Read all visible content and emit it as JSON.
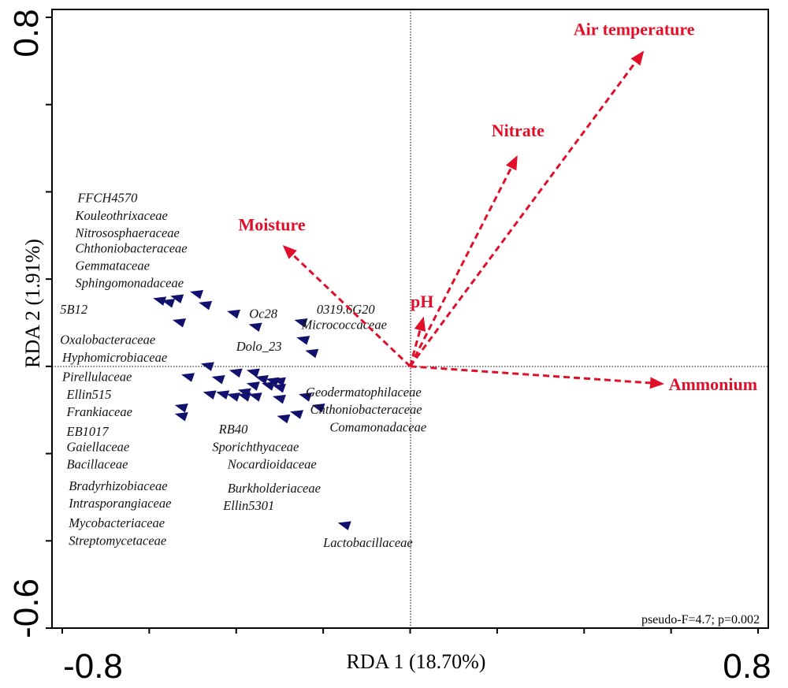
{
  "chart_data": {
    "type": "scatter",
    "subtype": "rda-biplot",
    "xlabel": "RDA 1 (18.70%)",
    "ylabel": "RDA 2 (1.91%)",
    "xlim": [
      -0.8,
      0.8
    ],
    "ylim": [
      -0.6,
      0.8
    ],
    "x_tick_labels": [
      "-0.8",
      "0.8"
    ],
    "y_tick_labels": [
      "0.8",
      "-0.6"
    ],
    "annotation": "pseudo-F=4.7; p=0.002",
    "grid": false,
    "reference_lines": "dotted lines at x=0 and y=0",
    "colors": {
      "environment": "#e0102a",
      "species": "#12126e",
      "axis": "#000000"
    },
    "environmental_variables": [
      {
        "name": "Air temperature",
        "x": 0.535,
        "y": 0.72
      },
      {
        "name": "Nitrate",
        "x": 0.245,
        "y": 0.48
      },
      {
        "name": "Moisture",
        "x": -0.29,
        "y": 0.275
      },
      {
        "name": "pH",
        "x": 0.03,
        "y": 0.11
      },
      {
        "name": "Ammonium",
        "x": 0.58,
        "y": -0.04
      }
    ],
    "species_points": [
      {
        "x": -0.575,
        "y": 0.15
      },
      {
        "x": -0.555,
        "y": 0.145
      },
      {
        "x": -0.535,
        "y": 0.155
      },
      {
        "x": -0.49,
        "y": 0.165
      },
      {
        "x": -0.47,
        "y": 0.14
      },
      {
        "x": -0.53,
        "y": 0.1
      },
      {
        "x": -0.405,
        "y": 0.12
      },
      {
        "x": -0.355,
        "y": 0.09
      },
      {
        "x": -0.25,
        "y": 0.1
      },
      {
        "x": -0.245,
        "y": 0.06
      },
      {
        "x": -0.225,
        "y": 0.03
      },
      {
        "x": -0.465,
        "y": 0.0
      },
      {
        "x": -0.36,
        "y": -0.015
      },
      {
        "x": -0.4,
        "y": -0.015
      },
      {
        "x": -0.44,
        "y": -0.03
      },
      {
        "x": -0.51,
        "y": -0.025
      },
      {
        "x": -0.46,
        "y": -0.065
      },
      {
        "x": -0.43,
        "y": -0.065
      },
      {
        "x": -0.405,
        "y": -0.07
      },
      {
        "x": -0.38,
        "y": -0.06
      },
      {
        "x": -0.36,
        "y": -0.045
      },
      {
        "x": -0.34,
        "y": -0.03
      },
      {
        "x": -0.325,
        "y": -0.045
      },
      {
        "x": -0.3,
        "y": -0.05
      },
      {
        "x": -0.355,
        "y": -0.07
      },
      {
        "x": -0.3,
        "y": -0.075
      },
      {
        "x": -0.24,
        "y": -0.07
      },
      {
        "x": -0.21,
        "y": -0.095
      },
      {
        "x": -0.26,
        "y": -0.11
      },
      {
        "x": -0.525,
        "y": -0.095
      },
      {
        "x": -0.525,
        "y": -0.115
      },
      {
        "x": -0.29,
        "y": -0.12
      },
      {
        "x": -0.38,
        "y": -0.07
      },
      {
        "x": -0.315,
        "y": -0.035
      },
      {
        "x": -0.3,
        "y": -0.035
      },
      {
        "x": -0.15,
        "y": -0.365
      }
    ],
    "species_labels": [
      {
        "text": "FFCH4570",
        "x": -0.765,
        "y": 0.385
      },
      {
        "text": "Kouleothrixaceae",
        "x": -0.77,
        "y": 0.345
      },
      {
        "text": "Nitrososphaeraceae",
        "x": -0.77,
        "y": 0.305
      },
      {
        "text": "Chthoniobacteraceae",
        "x": -0.77,
        "y": 0.27
      },
      {
        "text": "Gemmataceae",
        "x": -0.77,
        "y": 0.23
      },
      {
        "text": "Sphingomonadaceae",
        "x": -0.77,
        "y": 0.19
      },
      {
        "text": "5B12",
        "x": -0.805,
        "y": 0.13
      },
      {
        "text": "Oc28",
        "x": -0.37,
        "y": 0.12
      },
      {
        "text": "0319.6G20",
        "x": -0.215,
        "y": 0.13
      },
      {
        "text": "Micrococcaceae",
        "x": -0.25,
        "y": 0.095
      },
      {
        "text": "Oxalobacteraceae",
        "x": -0.805,
        "y": 0.06
      },
      {
        "text": "Dolo_23",
        "x": -0.4,
        "y": 0.045
      },
      {
        "text": "Hyphomicrobiaceae",
        "x": -0.8,
        "y": 0.02
      },
      {
        "text": "Pirellulaceae",
        "x": -0.8,
        "y": -0.025
      },
      {
        "text": "Ellin515",
        "x": -0.79,
        "y": -0.065
      },
      {
        "text": "Geodermatophilaceae",
        "x": -0.24,
        "y": -0.06
      },
      {
        "text": "Chthoniobacteraceae",
        "x": -0.23,
        "y": -0.1
      },
      {
        "text": "Frankiaceae",
        "x": -0.79,
        "y": -0.105
      },
      {
        "text": "Comamonadaceae",
        "x": -0.185,
        "y": -0.14
      },
      {
        "text": "RB40",
        "x": -0.44,
        "y": -0.145
      },
      {
        "text": "EB1017",
        "x": -0.79,
        "y": -0.15
      },
      {
        "text": "Sporichthyaceae",
        "x": -0.455,
        "y": -0.185
      },
      {
        "text": "Gaiellaceae",
        "x": -0.79,
        "y": -0.185
      },
      {
        "text": "Nocardioidaceae",
        "x": -0.42,
        "y": -0.225
      },
      {
        "text": "Bacillaceae",
        "x": -0.79,
        "y": -0.225
      },
      {
        "text": "Bradyrhizobiaceae",
        "x": -0.785,
        "y": -0.275
      },
      {
        "text": "Burkholderiaceae",
        "x": -0.42,
        "y": -0.28
      },
      {
        "text": "Intrasporangiaceae",
        "x": -0.785,
        "y": -0.315
      },
      {
        "text": "Ellin5301",
        "x": -0.43,
        "y": -0.32
      },
      {
        "text": "Mycobacteriaceae",
        "x": -0.785,
        "y": -0.36
      },
      {
        "text": "Lactobacillaceae",
        "x": -0.2,
        "y": -0.405
      },
      {
        "text": "Streptomycetaceae",
        "x": -0.785,
        "y": -0.4
      }
    ]
  }
}
